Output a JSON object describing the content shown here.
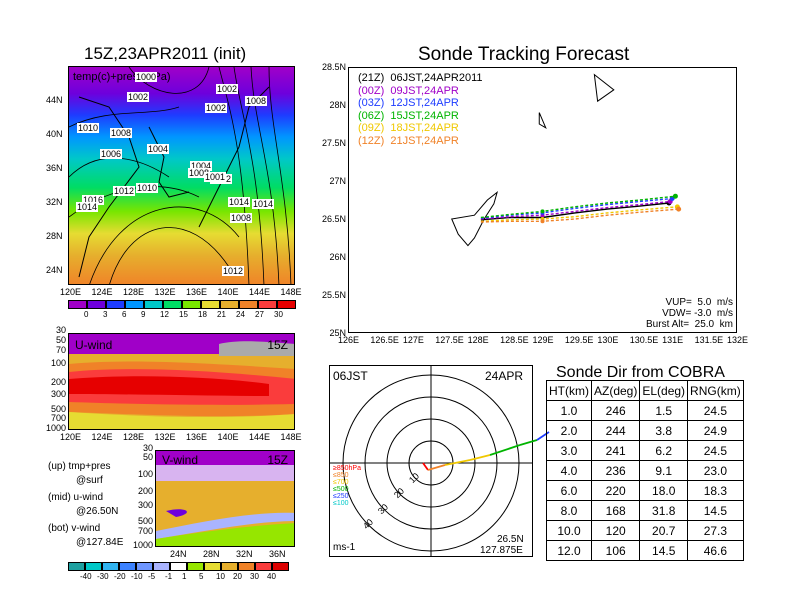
{
  "map_panel": {
    "title": "15Z,23APR2011 (init)",
    "legend_text": "temp(c)+press(hPa)",
    "lat_labels": [
      "44N",
      "40N",
      "36N",
      "32N",
      "28N",
      "24N"
    ],
    "lon_labels": [
      "120E",
      "124E",
      "128E",
      "132E",
      "136E",
      "140E",
      "144E",
      "148E"
    ],
    "isobar_labels": [
      "1000",
      "1002",
      "1002",
      "1004",
      "1002",
      "1008",
      "1010",
      "1008",
      "1006",
      "1004",
      "1008",
      "1002",
      "1012",
      "1010",
      "1014",
      "1016",
      "1014",
      "1008",
      "1014",
      "1012",
      "1001"
    ],
    "colorbar_ticks": [
      "0",
      "3",
      "6",
      "9",
      "12",
      "15",
      "18",
      "21",
      "24",
      "27",
      "30"
    ],
    "colorbar_colors": [
      "#a000c8",
      "#6e00dc",
      "#1e3cff",
      "#0096ff",
      "#00c8c8",
      "#00dc64",
      "#78e600",
      "#e6dc32",
      "#e6af2d",
      "#f08228",
      "#fa3c3c",
      "#e60000"
    ]
  },
  "u_wind_panel": {
    "label": "U-wind",
    "time": "15Z",
    "pressure_labels": [
      "30",
      "50",
      "70",
      "100",
      "200",
      "300",
      "500",
      "700",
      "1000"
    ],
    "lon_labels": [
      "120E",
      "124E",
      "128E",
      "132E",
      "136E",
      "140E",
      "144E",
      "148E"
    ]
  },
  "v_wind_panel": {
    "label": "V-wind",
    "time": "15Z",
    "pressure_labels": [
      "30",
      "50",
      "100",
      "200",
      "300",
      "500",
      "700",
      "1000"
    ],
    "lat_labels": [
      "24N",
      "28N",
      "32N",
      "36N"
    ],
    "colorbar_ticks": [
      "-40",
      "-30",
      "-20",
      "-10",
      "-5",
      "-1",
      "1",
      "5",
      "10",
      "20",
      "30",
      "40"
    ],
    "colorbar_colors": [
      "#1ea0a0",
      "#00c8c8",
      "#32b4f0",
      "#3c82ff",
      "#6e96ff",
      "#aab4ff",
      "#ffffff",
      "#96e600",
      "#e6dc32",
      "#e6af2d",
      "#f08228",
      "#fa3c3c",
      "#dc0000"
    ]
  },
  "notes": {
    "up": "(up) tmp+pres",
    "up2": "@surf",
    "mid": "(mid) u-wind",
    "mid2": "@26.50N",
    "bot": "(bot) v-wind",
    "bot2": "@127.84E"
  },
  "tracking": {
    "title": "Sonde Tracking Forecast",
    "lat_labels": [
      "28.5N",
      "28N",
      "27.5N",
      "27N",
      "26.5N",
      "26N",
      "25.5N",
      "25N"
    ],
    "lon_labels": [
      "126E",
      "126.5E",
      "127E",
      "127.5E",
      "128E",
      "128.5E",
      "129E",
      "129.5E",
      "130E",
      "130.5E",
      "131E",
      "131.5E",
      "132E"
    ],
    "legend": [
      {
        "label": "(21Z)  06JST,24APR2011",
        "color": "#000000"
      },
      {
        "label": "(00Z)  09JST,24APR",
        "color": "#a000c8"
      },
      {
        "label": "(03Z)  12JST,24APR",
        "color": "#1e3cff"
      },
      {
        "label": "(06Z)  15JST,24APR",
        "color": "#00b400"
      },
      {
        "label": "(09Z)  18JST,24APR",
        "color": "#f0c800"
      },
      {
        "label": "(12Z)  21JST,24APR",
        "color": "#f08228"
      }
    ],
    "params": [
      "VUP=  5.0  m/s",
      "VDW= -3.0  m/s",
      "Burst Alt=  25.0  km"
    ],
    "chart_data": {
      "type": "line",
      "xlabel": "",
      "ylabel": "",
      "xlim": [
        126,
        132
      ],
      "ylim": [
        25,
        28.5
      ],
      "series": [
        {
          "name": "(21Z) 06JST,24APR2011",
          "color": "#000000",
          "x": [
            128.05,
            128.5,
            129.0,
            129.5,
            130.0,
            130.5,
            130.95
          ],
          "y": [
            26.49,
            26.52,
            26.52,
            26.58,
            26.63,
            26.67,
            26.71
          ]
        },
        {
          "name": "(00Z) 09JST,24APR",
          "color": "#a000c8",
          "x": [
            128.05,
            128.5,
            129.0,
            129.5,
            130.0,
            130.5,
            130.97
          ],
          "y": [
            26.5,
            26.53,
            26.55,
            26.6,
            26.65,
            26.69,
            26.73
          ]
        },
        {
          "name": "(03Z) 12JST,24APR",
          "color": "#1e3cff",
          "x": [
            128.05,
            128.5,
            129.0,
            129.5,
            130.0,
            130.5,
            131.0
          ],
          "y": [
            26.51,
            26.55,
            26.58,
            26.64,
            26.69,
            26.73,
            26.77
          ]
        },
        {
          "name": "(06Z) 15JST,24APR",
          "color": "#00b400",
          "x": [
            128.05,
            128.5,
            129.0,
            129.5,
            130.0,
            130.5,
            131.05
          ],
          "y": [
            26.52,
            26.56,
            26.6,
            26.66,
            26.71,
            26.75,
            26.8
          ]
        },
        {
          "name": "(09Z) 18JST,24APR",
          "color": "#f0c800",
          "x": [
            128.05,
            128.5,
            129.0,
            129.5,
            130.0,
            130.5,
            131.08
          ],
          "y": [
            26.47,
            26.49,
            26.5,
            26.53,
            26.58,
            26.62,
            26.66
          ]
        },
        {
          "name": "(12Z) 21JST,24APR",
          "color": "#f08228",
          "x": [
            128.05,
            128.5,
            129.0,
            129.5,
            130.0,
            130.5,
            131.1
          ],
          "y": [
            26.46,
            26.47,
            26.47,
            26.5,
            26.55,
            26.59,
            26.63
          ]
        }
      ]
    }
  },
  "polar": {
    "time": "06JST",
    "date": "24APR",
    "ring_labels": [
      "10",
      "20",
      "30",
      "40"
    ],
    "alt_legend": [
      {
        "label": "≥850hPa",
        "color": "#ff0000"
      },
      {
        "label": "≤850",
        "color": "#f08228"
      },
      {
        "label": "≤700",
        "color": "#f0c800"
      },
      {
        "label": "≤500",
        "color": "#00b400"
      },
      {
        "label": "≤250",
        "color": "#1e3cff"
      },
      {
        "label": "≤100",
        "color": "#00c8c8"
      }
    ],
    "unit": "ms-1",
    "site_lat": "26.5N",
    "site_lon": "127.875E"
  },
  "sonde_table": {
    "title": "Sonde Dir from COBRA",
    "headers": [
      "HT(km)",
      "AZ(deg)",
      "EL(deg)",
      "RNG(km)"
    ],
    "rows": [
      [
        "1.0",
        "246",
        "1.5",
        "24.5"
      ],
      [
        "2.0",
        "244",
        "3.8",
        "24.9"
      ],
      [
        "3.0",
        "241",
        "6.2",
        "24.5"
      ],
      [
        "4.0",
        "236",
        "9.1",
        "23.0"
      ],
      [
        "6.0",
        "220",
        "18.0",
        "18.3"
      ],
      [
        "8.0",
        "168",
        "31.8",
        "14.5"
      ],
      [
        "10.0",
        "120",
        "20.7",
        "27.3"
      ],
      [
        "12.0",
        "106",
        "14.5",
        "46.6"
      ]
    ]
  }
}
